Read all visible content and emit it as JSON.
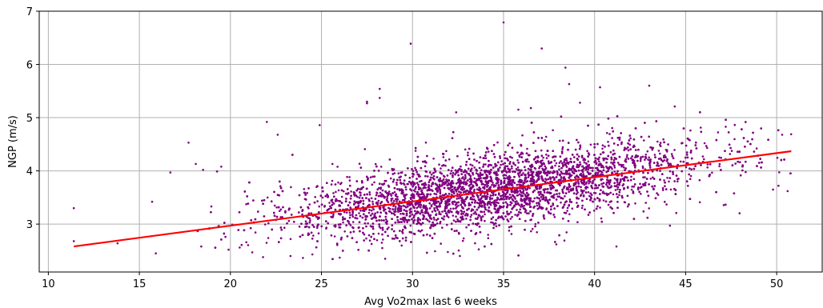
{
  "chart_data": {
    "type": "scatter",
    "title": "",
    "xlabel": "Avg Vo2max last 6 weeks",
    "ylabel": "NGP (m/s)",
    "xlim": [
      9.5,
      52.5
    ],
    "ylim": [
      2.1,
      7.0
    ],
    "x_ticks": [
      10,
      15,
      20,
      25,
      30,
      35,
      40,
      45,
      50
    ],
    "y_ticks": [
      3,
      4,
      5,
      6,
      7
    ],
    "grid": true,
    "legend": "none",
    "point_color": "#800080",
    "line_color": "#ff0000",
    "series": [
      {
        "kind": "points",
        "approx_count": 6000,
        "x_range": [
          11.4,
          50.8
        ],
        "y_range": [
          2.3,
          6.8
        ],
        "points": [
          [
            11.4,
            3.3
          ],
          [
            11.4,
            2.68
          ],
          [
            13.8,
            2.64
          ],
          [
            15.7,
            3.42
          ],
          [
            15.9,
            2.45
          ],
          [
            16.7,
            3.97
          ],
          [
            17.7,
            4.53
          ],
          [
            18.1,
            4.13
          ],
          [
            18.5,
            4.02
          ],
          [
            19.5,
            4.08
          ],
          [
            22.0,
            4.92
          ],
          [
            22.6,
            4.68
          ],
          [
            24.9,
            4.86
          ],
          [
            25.6,
            4.13
          ],
          [
            27.5,
            5.3
          ],
          [
            27.5,
            5.27
          ],
          [
            28.2,
            5.54
          ],
          [
            28.2,
            5.37
          ],
          [
            29.9,
            6.39
          ],
          [
            32.4,
            5.1
          ],
          [
            35.0,
            6.79
          ],
          [
            36.5,
            5.18
          ],
          [
            37.1,
            6.3
          ],
          [
            38.4,
            5.94
          ],
          [
            38.6,
            5.63
          ],
          [
            39.2,
            5.28
          ],
          [
            40.3,
            5.57
          ],
          [
            43.0,
            5.6
          ],
          [
            44.4,
            5.21
          ],
          [
            47.2,
            4.83
          ],
          [
            48.9,
            4.42
          ],
          [
            50.3,
            4.68
          ],
          [
            49.8,
            3.65
          ],
          [
            50.6,
            3.62
          ],
          [
            50.1,
            3.72
          ],
          [
            41.2,
            2.58
          ],
          [
            37.9,
            2.62
          ],
          [
            32.6,
            2.4
          ],
          [
            28.5,
            2.35
          ],
          [
            26.0,
            2.37
          ],
          [
            24.5,
            2.43
          ],
          [
            23.3,
            2.4
          ],
          [
            21.2,
            2.47
          ],
          [
            19.9,
            2.52
          ],
          [
            18.4,
            2.58
          ]
        ]
      },
      {
        "kind": "fit_line",
        "points": [
          [
            11.4,
            2.58
          ],
          [
            50.8,
            4.37
          ]
        ]
      }
    ]
  }
}
